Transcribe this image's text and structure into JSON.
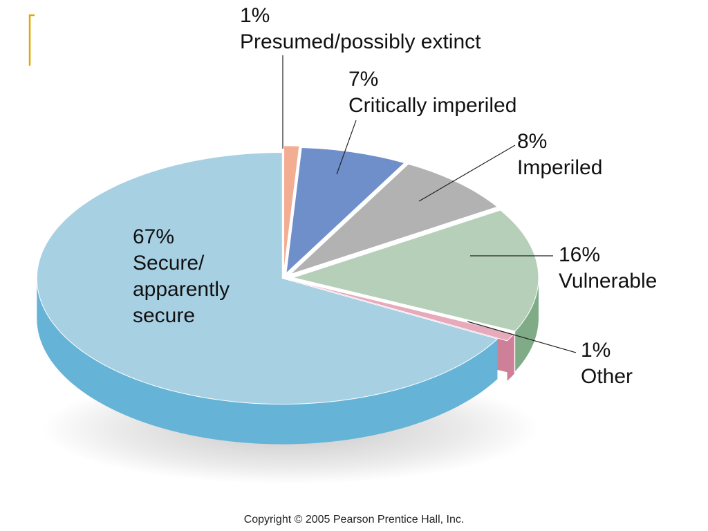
{
  "chart_data": {
    "type": "pie",
    "style": "3d-exploded",
    "slices": [
      {
        "label": "Presumed/possibly extinct",
        "percent": 1,
        "value_text": "1%",
        "top_color": "#f3ad93",
        "side_color": "#d98d74"
      },
      {
        "label": "Critically imperiled",
        "percent": 7,
        "value_text": "7%",
        "top_color": "#6f8fca",
        "side_color": "#5573ae"
      },
      {
        "label": "Imperiled",
        "percent": 8,
        "value_text": "8%",
        "top_color": "#b2b2b2",
        "side_color": "#8f8f8f"
      },
      {
        "label": "Vulnerable",
        "percent": 16,
        "value_text": "16%",
        "top_color": "#b6cfb8",
        "side_color": "#7fab86"
      },
      {
        "label": "Other",
        "percent": 1,
        "value_text": "1%",
        "top_color": "#e6aabb",
        "side_color": "#cf8099"
      },
      {
        "label": "Secure/ apparently secure",
        "percent": 67,
        "value_text": "67%",
        "top_color": "#a8d0e3",
        "side_color": "#65b3d7"
      }
    ],
    "legend": "none"
  },
  "labels": {
    "extinct": {
      "pct": "1%",
      "lines": [
        "Presumed/possibly extinct"
      ]
    },
    "critical": {
      "pct": "7%",
      "lines": [
        "Critically imperiled"
      ]
    },
    "imperiled": {
      "pct": "8%",
      "lines": [
        "Imperiled"
      ]
    },
    "vulnerable": {
      "pct": "16%",
      "lines": [
        "Vulnerable"
      ]
    },
    "other": {
      "pct": "1%",
      "lines": [
        "Other"
      ]
    },
    "secure": {
      "pct": "67%",
      "lines": [
        "Secure/",
        "apparently",
        "secure"
      ]
    }
  },
  "copyright": "Copyright © 2005 Pearson Prentice Hall, Inc.",
  "accent_color": "#e0a800"
}
